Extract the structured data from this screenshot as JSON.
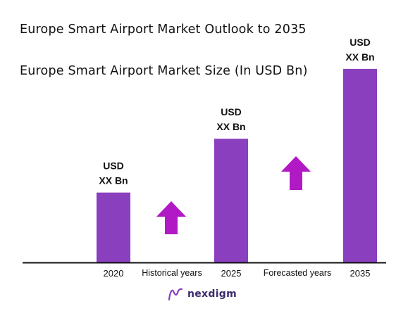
{
  "title": "Europe Smart Airport Market Outlook to 2035",
  "subtitle": "Europe Smart Airport Market Size (In USD Bn)",
  "colors": {
    "bar": "#8a3fbf",
    "arrow": "#b119c4",
    "axis": "#111111",
    "brand": "#3b2a6b"
  },
  "chart_data": {
    "type": "bar",
    "categories": [
      "2020",
      "2025",
      "2035"
    ],
    "values": [
      100,
      177,
      277
    ],
    "value_labels": [
      [
        "USD",
        "XX Bn"
      ],
      [
        "USD",
        "XX Bn"
      ],
      [
        "USD",
        "XX Bn"
      ]
    ],
    "ylim": [
      0,
      290
    ],
    "period_labels": [
      "Historical years",
      "Forecasted years"
    ],
    "growth_arrows": [
      "arrow-up-icon",
      "arrow-up-icon"
    ]
  },
  "brand": {
    "name": "nexdigm",
    "icon": "nexdigm-logo-icon"
  }
}
